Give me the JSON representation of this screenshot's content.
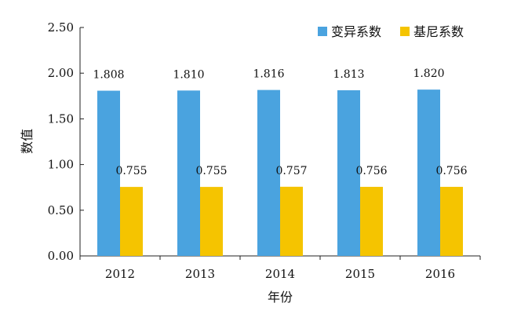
{
  "chart_data": {
    "type": "bar",
    "categories": [
      "2012",
      "2013",
      "2014",
      "2015",
      "2016"
    ],
    "series": [
      {
        "name": "变异系数",
        "values": [
          1.808,
          1.81,
          1.816,
          1.813,
          1.82
        ],
        "labels": [
          "1.808",
          "1.810",
          "1.816",
          "1.813",
          "1.820"
        ],
        "color": "#4aa3df"
      },
      {
        "name": "基尼系数",
        "values": [
          0.755,
          0.755,
          0.757,
          0.756,
          0.756
        ],
        "labels": [
          "0.755",
          "0.755",
          "0.757",
          "0.756",
          "0.756"
        ],
        "color": "#f5c400"
      }
    ],
    "xlabel": "年份",
    "ylabel": "数值",
    "ylim": [
      0,
      2.5
    ],
    "yticks": [
      "0.00",
      "0.50",
      "1.00",
      "1.50",
      "2.00",
      "2.50"
    ],
    "grid": false,
    "legend": "top-right"
  }
}
